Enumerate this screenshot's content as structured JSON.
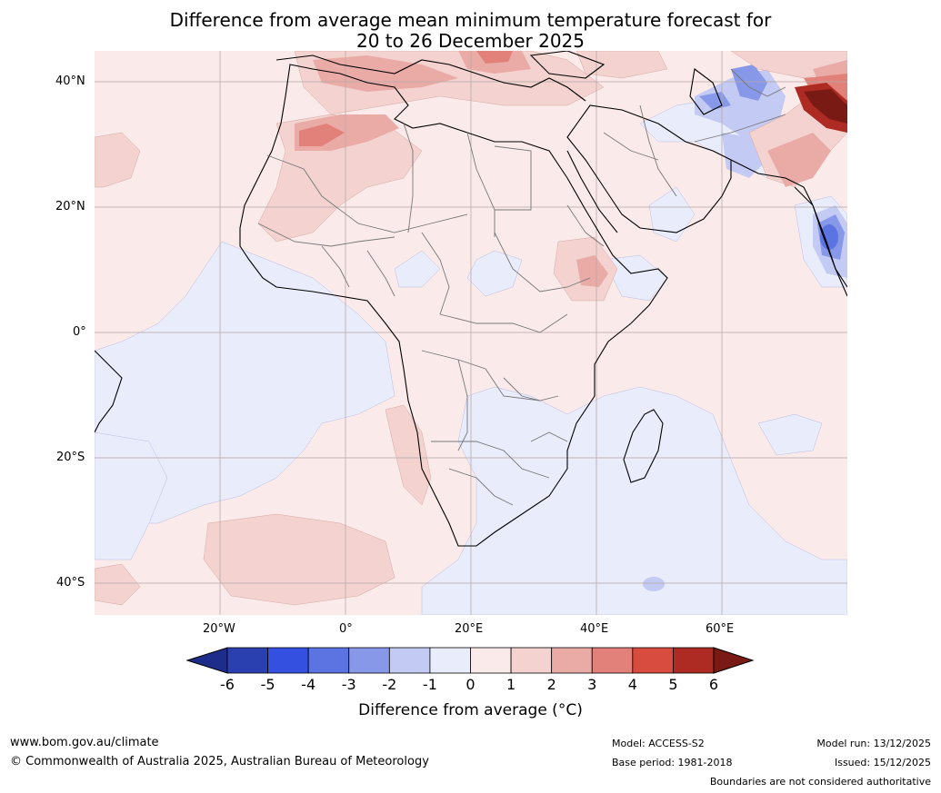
{
  "title": {
    "line1": "Difference from average mean minimum temperature forecast for",
    "line2": "20 to 26 December 2025"
  },
  "axes": {
    "lat_labels": [
      "40°N",
      "20°N",
      "0°",
      "20°S",
      "40°S"
    ],
    "lon_labels": [
      "20°W",
      "0°",
      "20°E",
      "40°E",
      "60°E"
    ]
  },
  "colorbar": {
    "ticks": [
      "-6",
      "-5",
      "-4",
      "-3",
      "-2",
      "-1",
      "0",
      "1",
      "2",
      "3",
      "4",
      "5",
      "6"
    ],
    "label": "Difference from average (°C)",
    "label_prefix": "Difference from average (",
    "label_unit": "°C",
    "label_suffix": ")",
    "colors": [
      "#1f2d8a",
      "#2a3fb0",
      "#3450e0",
      "#5c74e2",
      "#8898e8",
      "#c3caf3",
      "#e9ecfb",
      "#fbeaea",
      "#f3d2cf",
      "#eaaaa6",
      "#e2807a",
      "#d84c40",
      "#ad2b22",
      "#7a1a14"
    ]
  },
  "footer": {
    "website": "www.bom.gov.au/climate",
    "copyright": "© Commonwealth of Australia 2025, Australian Bureau of Meteorology",
    "model": "Model: ACCESS-S2",
    "base_period": "Base period: 1981-2018",
    "model_run": "Model run: 13/12/2025",
    "issued": "Issued: 15/12/2025",
    "disclaimer": "Boundaries are not considered authoritative"
  }
}
